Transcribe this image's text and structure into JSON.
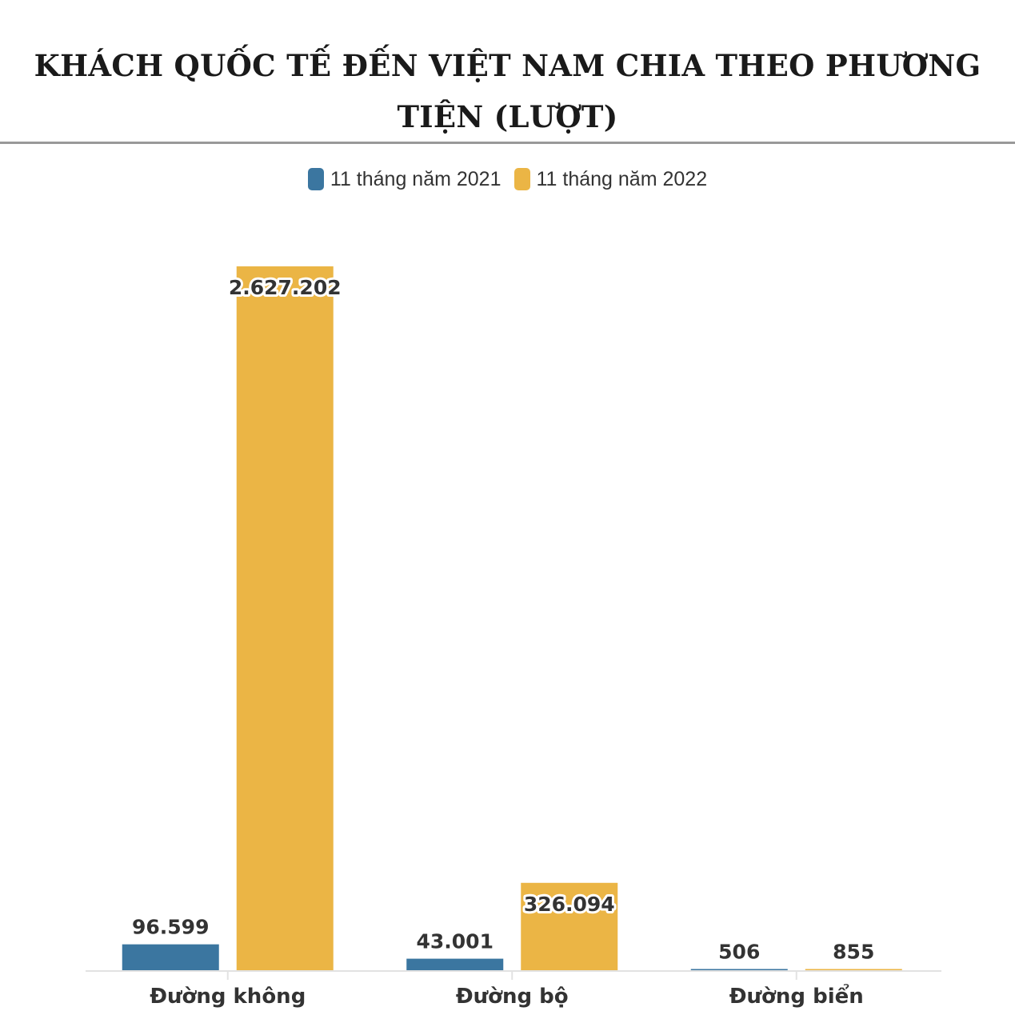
{
  "chart_data": {
    "type": "bar",
    "title": "KHÁCH QUỐC TẾ ĐẾN VIỆT NAM CHIA THEO PHƯƠNG TIỆN (LƯỢT)",
    "categories": [
      "Đường không",
      "Đường bộ",
      "Đường biển"
    ],
    "series": [
      {
        "name": "11 tháng năm 2021",
        "color": "#3b76a0",
        "values": [
          96599,
          43001,
          506
        ],
        "labels": [
          "96.599",
          "43.001",
          "506"
        ]
      },
      {
        "name": "11 tháng năm 2022",
        "color": "#ebb545",
        "values": [
          2627202,
          326094,
          855
        ],
        "labels": [
          "2.627.202",
          "326.094",
          "855"
        ]
      }
    ],
    "ylim": [
      0,
      2627202
    ],
    "grid": false,
    "legend": "top-center"
  }
}
